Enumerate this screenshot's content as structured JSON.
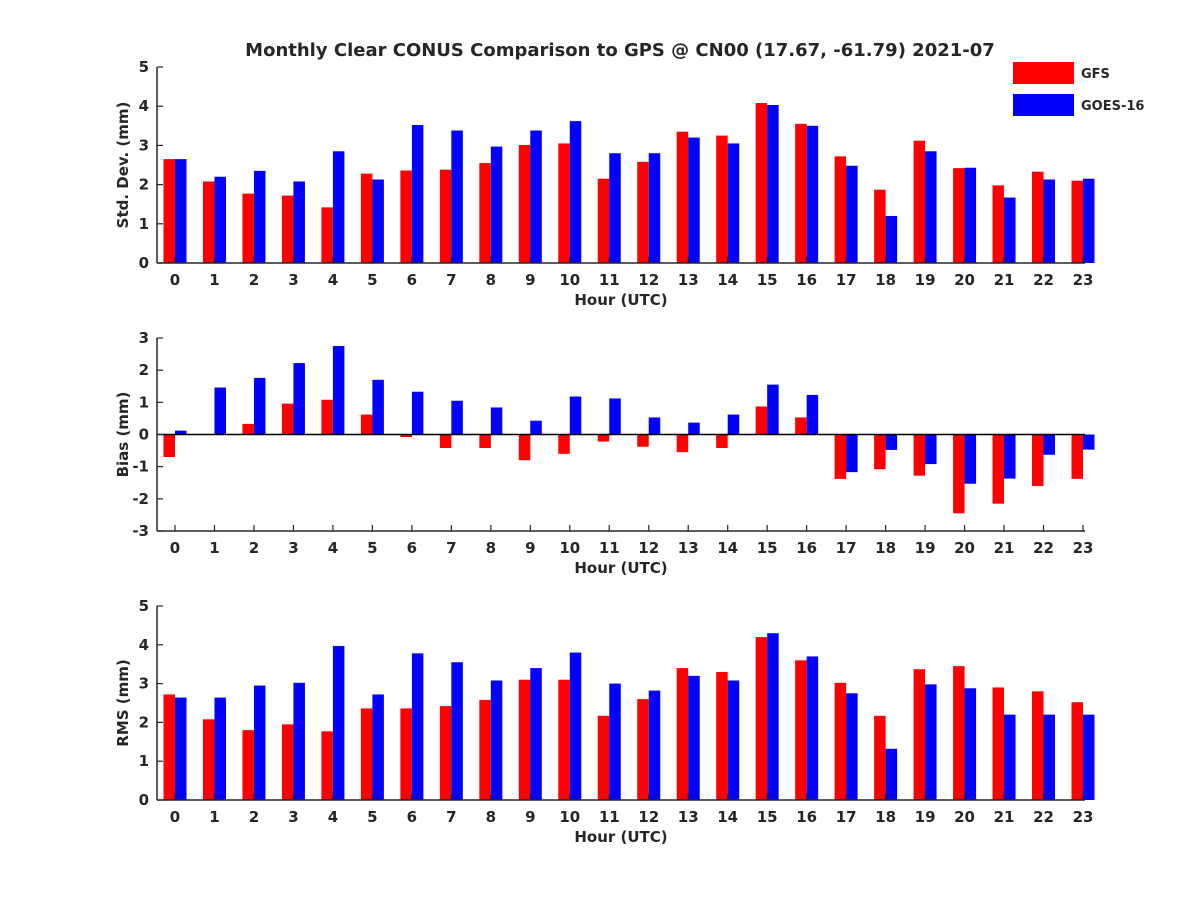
{
  "chart_data": {
    "title": "Monthly Clear CONUS Comparison to GPS @ CN00 (17.67, -61.79) 2021-07",
    "legend": {
      "placement": "top-right",
      "entries": [
        {
          "name": "GFS",
          "color": "#ff0000"
        },
        {
          "name": "GOES-16",
          "color": "#0000ff"
        }
      ]
    },
    "panels": [
      {
        "type": "bar",
        "xlabel": "Hour (UTC)",
        "ylabel": "Std. Dev. (mm)",
        "ylim": [
          0,
          5
        ],
        "yticks": [
          0,
          1,
          2,
          3,
          4,
          5
        ],
        "categories": [
          "0",
          "1",
          "2",
          "3",
          "4",
          "5",
          "6",
          "7",
          "8",
          "9",
          "10",
          "11",
          "12",
          "13",
          "14",
          "15",
          "16",
          "17",
          "18",
          "19",
          "20",
          "21",
          "22",
          "23"
        ],
        "series": [
          {
            "name": "GFS",
            "color": "#ff0000",
            "values": [
              2.65,
              2.08,
              1.77,
              1.72,
              1.42,
              2.28,
              2.36,
              2.38,
              2.55,
              3.01,
              3.05,
              2.15,
              2.58,
              3.35,
              3.25,
              4.08,
              3.55,
              2.72,
              1.87,
              3.12,
              2.42,
              1.98,
              2.33,
              2.1
            ]
          },
          {
            "name": "GOES-16",
            "color": "#0000ff",
            "values": [
              2.65,
              2.2,
              2.35,
              2.08,
              2.85,
              2.13,
              3.52,
              3.38,
              2.97,
              3.38,
              3.62,
              2.8,
              2.8,
              3.2,
              3.05,
              4.03,
              3.5,
              2.48,
              1.2,
              2.85,
              2.43,
              1.67,
              2.13,
              2.15
            ]
          }
        ]
      },
      {
        "type": "bar",
        "xlabel": "Hour (UTC)",
        "ylabel": "Bias (mm)",
        "ylim": [
          -3,
          3
        ],
        "yticks": [
          -3,
          -2,
          -1,
          0,
          1,
          2,
          3
        ],
        "baseline": 0,
        "categories": [
          "0",
          "1",
          "2",
          "3",
          "4",
          "5",
          "6",
          "7",
          "8",
          "9",
          "10",
          "11",
          "12",
          "13",
          "14",
          "15",
          "16",
          "17",
          "18",
          "19",
          "20",
          "21",
          "22",
          "23"
        ],
        "series": [
          {
            "name": "GFS",
            "color": "#ff0000",
            "values": [
              -0.7,
              0.0,
              0.33,
              0.96,
              1.08,
              0.62,
              -0.08,
              -0.42,
              -0.42,
              -0.8,
              -0.6,
              -0.22,
              -0.38,
              -0.55,
              -0.42,
              0.87,
              0.53,
              -1.38,
              -1.08,
              -1.28,
              -2.45,
              -2.15,
              -1.6,
              -1.38
            ]
          },
          {
            "name": "GOES-16",
            "color": "#0000ff",
            "values": [
              0.12,
              1.46,
              1.76,
              2.22,
              2.75,
              1.7,
              1.33,
              1.05,
              0.84,
              0.43,
              1.18,
              1.12,
              0.53,
              0.37,
              0.62,
              1.55,
              1.23,
              -1.17,
              -0.48,
              -0.92,
              -1.53,
              -1.37,
              -0.63,
              -0.47
            ]
          }
        ]
      },
      {
        "type": "bar",
        "xlabel": "Hour (UTC)",
        "ylabel": "RMS (mm)",
        "ylim": [
          0,
          5
        ],
        "yticks": [
          0,
          1,
          2,
          3,
          4,
          5
        ],
        "categories": [
          "0",
          "1",
          "2",
          "3",
          "4",
          "5",
          "6",
          "7",
          "8",
          "9",
          "10",
          "11",
          "12",
          "13",
          "14",
          "15",
          "16",
          "17",
          "18",
          "19",
          "20",
          "21",
          "22",
          "23"
        ],
        "series": [
          {
            "name": "GFS",
            "color": "#ff0000",
            "values": [
              2.72,
              2.08,
              1.8,
              1.95,
              1.77,
              2.36,
              2.36,
              2.42,
              2.58,
              3.1,
              3.1,
              2.17,
              2.6,
              3.4,
              3.3,
              4.2,
              3.6,
              3.02,
              2.17,
              3.37,
              3.45,
              2.9,
              2.8,
              2.52
            ]
          },
          {
            "name": "GOES-16",
            "color": "#0000ff",
            "values": [
              2.64,
              2.64,
              2.95,
              3.02,
              3.97,
              2.72,
              3.78,
              3.55,
              3.08,
              3.4,
              3.8,
              3.0,
              2.82,
              3.2,
              3.08,
              4.3,
              3.7,
              2.75,
              1.32,
              2.98,
              2.88,
              2.2,
              2.2,
              2.2
            ]
          }
        ]
      }
    ]
  }
}
